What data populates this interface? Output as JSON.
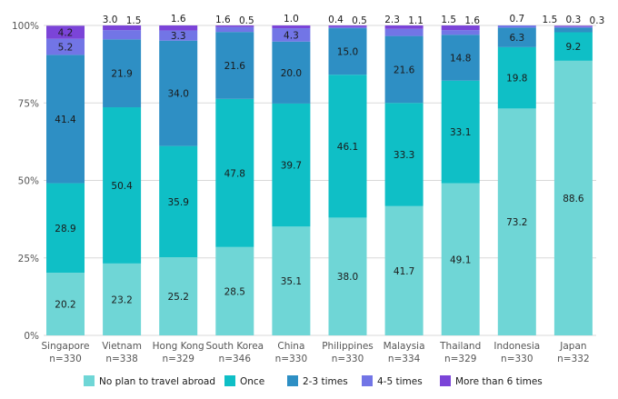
{
  "chart_data": {
    "type": "bar",
    "stacked": true,
    "title": "",
    "xlabel": "",
    "ylabel": "",
    "ylim": [
      0,
      100
    ],
    "y_ticks": [
      "0%",
      "25%",
      "50%",
      "75%",
      "100%"
    ],
    "grid": true,
    "legend_position": "bottom",
    "categories": [
      "Singapore",
      "Vietnam",
      "Hong Kong",
      "South Korea",
      "China",
      "Philippines",
      "Malaysia",
      "Thailand",
      "Indonesia",
      "Japan"
    ],
    "sample_sizes": [
      "n=330",
      "n=338",
      "n=329",
      "n=346",
      "n=330",
      "n=330",
      "n=334",
      "n=329",
      "n=330",
      "n=332"
    ],
    "series": [
      {
        "name": "No plan to travel abroad",
        "color": "#6fd6d6",
        "values": [
          20.2,
          23.2,
          25.2,
          28.5,
          35.1,
          38.0,
          41.7,
          49.1,
          73.2,
          88.6
        ],
        "labels": [
          "20.2",
          "23.2",
          "25.2",
          "28.5",
          "35.1",
          "38.0",
          "41.7",
          "49.1",
          "73.2",
          "88.6"
        ]
      },
      {
        "name": "Once",
        "color": "#0fbfc6",
        "values": [
          28.9,
          50.4,
          35.9,
          47.8,
          39.7,
          46.1,
          33.3,
          33.1,
          19.8,
          9.2
        ],
        "labels": [
          "28.9",
          "50.4",
          "35.9",
          "47.8",
          "39.7",
          "46.1",
          "33.3",
          "33.1",
          "19.8",
          "9.2"
        ]
      },
      {
        "name": "2-3 times",
        "color": "#2e8fc4",
        "values": [
          41.4,
          21.9,
          34.0,
          21.6,
          20.0,
          15.0,
          21.6,
          14.8,
          6.3,
          1.5
        ],
        "labels": [
          "41.4",
          "21.9",
          "34.0",
          "21.6",
          "20.0",
          "15.0",
          "21.6",
          "14.8",
          "6.3",
          "1.5"
        ]
      },
      {
        "name": "4-5 times",
        "color": "#7275e6",
        "values": [
          5.2,
          3.0,
          3.3,
          1.6,
          4.3,
          0.4,
          2.3,
          1.5,
          0.7,
          0.3
        ],
        "labels": [
          "5.2",
          "3.0",
          "3.3",
          "1.6",
          "4.3",
          "0.4",
          "2.3",
          "1.5",
          "0.7",
          "0.3"
        ]
      },
      {
        "name": "More than 6 times",
        "color": "#7b44d8",
        "values": [
          4.2,
          1.5,
          1.6,
          0.5,
          1.0,
          0.5,
          1.1,
          1.6,
          0.0,
          0.3
        ],
        "labels": [
          "4.2",
          "1.5",
          "1.6",
          "0.5",
          "1.0",
          "0.5",
          "1.1",
          "1.6",
          "",
          "0.3"
        ]
      }
    ]
  }
}
